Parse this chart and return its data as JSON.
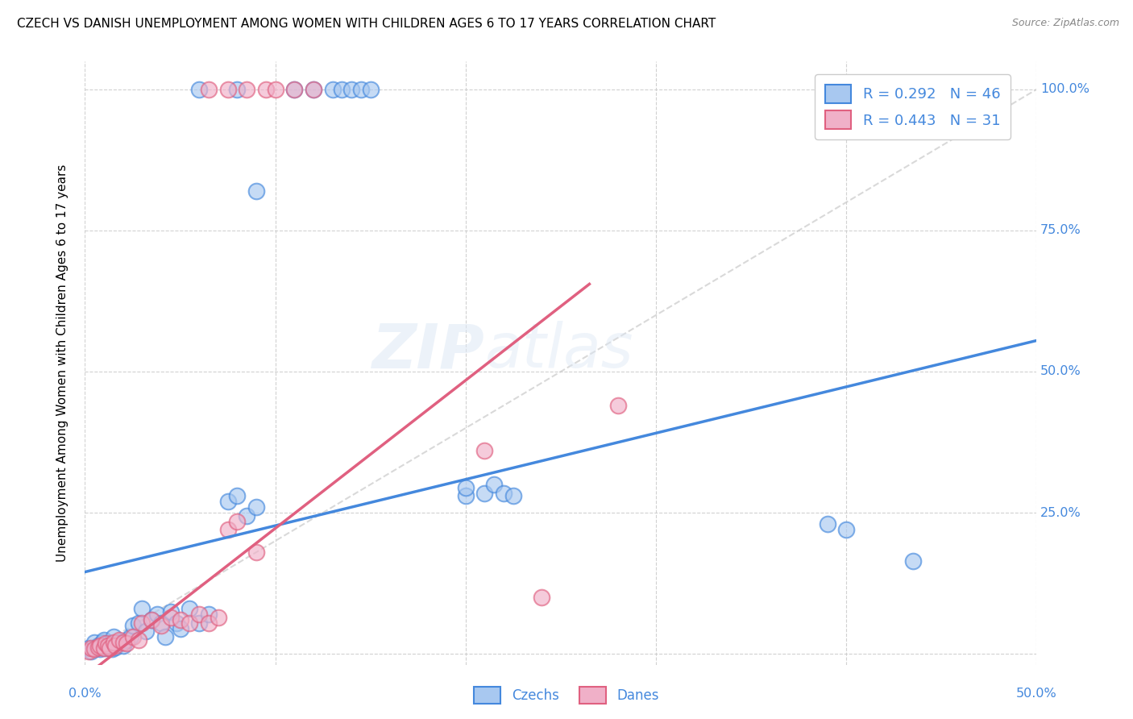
{
  "title": "CZECH VS DANISH UNEMPLOYMENT AMONG WOMEN WITH CHILDREN AGES 6 TO 17 YEARS CORRELATION CHART",
  "source": "Source: ZipAtlas.com",
  "ylabel": "Unemployment Among Women with Children Ages 6 to 17 years",
  "watermark_zip": "ZIP",
  "watermark_atlas": "atlas",
  "czech_color": "#a8c8f0",
  "danish_color": "#f0b0c8",
  "czech_line_color": "#4488dd",
  "danish_line_color": "#e06080",
  "diag_line_color": "#d0d0d0",
  "legend_r_czech": "R = 0.292",
  "legend_n_czech": "N = 46",
  "legend_r_danish": "R = 0.443",
  "legend_n_danish": "N = 31",
  "xlim": [
    0.0,
    0.5
  ],
  "ylim": [
    -0.02,
    1.05
  ],
  "x_ticks": [
    0.0,
    0.1,
    0.2,
    0.3,
    0.4,
    0.5
  ],
  "y_ticks": [
    0.0,
    0.25,
    0.5,
    0.75,
    1.0
  ],
  "y_tick_labels": [
    "",
    "25.0%",
    "50.0%",
    "75.0%",
    "100.0%"
  ],
  "czech_line": {
    "x0": 0.0,
    "y0": 0.145,
    "x1": 0.5,
    "y1": 0.555
  },
  "danish_line": {
    "x0": 0.0,
    "y0": -0.04,
    "x1": 0.265,
    "y1": 0.655
  },
  "czech_points": [
    [
      0.002,
      0.01
    ],
    [
      0.003,
      0.005
    ],
    [
      0.005,
      0.02
    ],
    [
      0.006,
      0.01
    ],
    [
      0.007,
      0.015
    ],
    [
      0.008,
      0.008
    ],
    [
      0.009,
      0.02
    ],
    [
      0.01,
      0.025
    ],
    [
      0.011,
      0.01
    ],
    [
      0.012,
      0.018
    ],
    [
      0.013,
      0.015
    ],
    [
      0.014,
      0.008
    ],
    [
      0.015,
      0.03
    ],
    [
      0.016,
      0.012
    ],
    [
      0.018,
      0.02
    ],
    [
      0.02,
      0.015
    ],
    [
      0.022,
      0.025
    ],
    [
      0.024,
      0.03
    ],
    [
      0.025,
      0.05
    ],
    [
      0.028,
      0.055
    ],
    [
      0.03,
      0.08
    ],
    [
      0.032,
      0.04
    ],
    [
      0.035,
      0.06
    ],
    [
      0.038,
      0.07
    ],
    [
      0.04,
      0.055
    ],
    [
      0.042,
      0.03
    ],
    [
      0.045,
      0.075
    ],
    [
      0.048,
      0.055
    ],
    [
      0.05,
      0.045
    ],
    [
      0.055,
      0.08
    ],
    [
      0.06,
      0.055
    ],
    [
      0.065,
      0.07
    ],
    [
      0.075,
      0.27
    ],
    [
      0.08,
      0.28
    ],
    [
      0.085,
      0.245
    ],
    [
      0.09,
      0.26
    ],
    [
      0.2,
      0.28
    ],
    [
      0.21,
      0.285
    ],
    [
      0.215,
      0.3
    ],
    [
      0.22,
      0.285
    ],
    [
      0.225,
      0.28
    ],
    [
      0.39,
      0.23
    ],
    [
      0.4,
      0.22
    ],
    [
      0.435,
      0.165
    ],
    [
      0.2,
      0.295
    ],
    [
      0.09,
      0.82
    ]
  ],
  "danish_points": [
    [
      0.002,
      0.005
    ],
    [
      0.003,
      0.01
    ],
    [
      0.005,
      0.008
    ],
    [
      0.007,
      0.012
    ],
    [
      0.008,
      0.015
    ],
    [
      0.01,
      0.01
    ],
    [
      0.011,
      0.018
    ],
    [
      0.012,
      0.015
    ],
    [
      0.013,
      0.01
    ],
    [
      0.015,
      0.02
    ],
    [
      0.016,
      0.015
    ],
    [
      0.018,
      0.025
    ],
    [
      0.02,
      0.02
    ],
    [
      0.022,
      0.018
    ],
    [
      0.025,
      0.03
    ],
    [
      0.028,
      0.025
    ],
    [
      0.03,
      0.055
    ],
    [
      0.035,
      0.06
    ],
    [
      0.04,
      0.05
    ],
    [
      0.045,
      0.065
    ],
    [
      0.05,
      0.06
    ],
    [
      0.055,
      0.055
    ],
    [
      0.06,
      0.07
    ],
    [
      0.065,
      0.055
    ],
    [
      0.07,
      0.065
    ],
    [
      0.075,
      0.22
    ],
    [
      0.08,
      0.235
    ],
    [
      0.09,
      0.18
    ],
    [
      0.21,
      0.36
    ],
    [
      0.24,
      0.1
    ],
    [
      0.28,
      0.44
    ]
  ],
  "czech_top_points": [
    [
      0.06,
      1.0
    ],
    [
      0.08,
      1.0
    ],
    [
      0.11,
      1.0
    ],
    [
      0.12,
      1.0
    ],
    [
      0.13,
      1.0
    ],
    [
      0.135,
      1.0
    ],
    [
      0.14,
      1.0
    ],
    [
      0.145,
      1.0
    ],
    [
      0.15,
      1.0
    ],
    [
      0.39,
      1.0
    ]
  ],
  "danish_top_points": [
    [
      0.065,
      1.0
    ],
    [
      0.075,
      1.0
    ],
    [
      0.085,
      1.0
    ],
    [
      0.095,
      1.0
    ],
    [
      0.1,
      1.0
    ],
    [
      0.11,
      1.0
    ],
    [
      0.12,
      1.0
    ]
  ]
}
